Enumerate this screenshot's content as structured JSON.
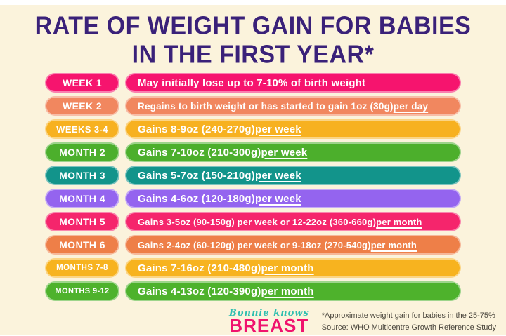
{
  "theme": {
    "background": "#FBF3DC",
    "title_color": "#3A2179",
    "pill_text_color": "#FFFFFF",
    "footnote_color": "#4A463D",
    "logo_script_color": "#2FBFB0",
    "logo_wordmark_color": "#F0136E"
  },
  "title": {
    "line1": "RATE OF WEIGHT GAIN FOR BABIES",
    "line2": "IN THE FIRST YEAR*"
  },
  "rows": [
    {
      "label": "WEEK 1",
      "text": "May initially lose up to 7-10% of birth weight",
      "underline": "",
      "color": "#F6146E"
    },
    {
      "label": "WEEK 2",
      "text": "Regains to birth weight or has started to gain 1oz (30g) ",
      "underline": "per day",
      "color": "#F1875F"
    },
    {
      "label": "WEEKS 3-4",
      "text": "Gains 8-9oz (240-270g) ",
      "underline": "per week",
      "color": "#F7B120"
    },
    {
      "label": "MONTH 2",
      "text": "Gains 7-10oz (210-300g) ",
      "underline": "per week",
      "color": "#4CAF2C"
    },
    {
      "label": "MONTH 3",
      "text": "Gains 5-7oz (150-210g) ",
      "underline": "per week",
      "color": "#12948B"
    },
    {
      "label": "MONTH 4",
      "text": "Gains 4-6oz (120-180g) ",
      "underline": "per week",
      "color": "#9464EF"
    },
    {
      "label": "MONTH 5",
      "text": "Gains 3-5oz (90-150g) per week or 12-22oz (360-660g) ",
      "underline": "per month",
      "color": "#F5256C"
    },
    {
      "label": "MONTH 6",
      "text": "Gains 2-4oz (60-120g) per week or 9-18oz (270-540g) ",
      "underline": "per month",
      "color": "#EE7F48"
    },
    {
      "label": "MONTHS 7-8",
      "text": "Gains 7-16oz (210-480g) ",
      "underline": "per month",
      "color": "#F7B31F"
    },
    {
      "label": "MONTHS 9-12",
      "text": "Gains 4-13oz (120-390g) ",
      "underline": "per month",
      "color": "#4EB22C"
    }
  ],
  "footer": {
    "logo_script": "Bonnie knows",
    "logo_wordmark": "BREAST",
    "note_line1": "*Approximate weight gain for babies in the 25-75%",
    "note_line2": "Source: WHO Multicentre Growth Reference Study"
  }
}
